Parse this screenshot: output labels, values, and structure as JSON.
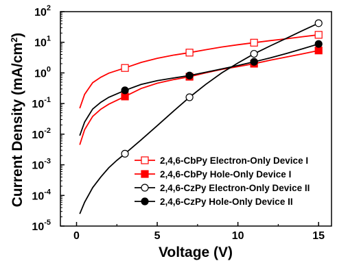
{
  "chart_data": {
    "type": "scatter",
    "xlabel": "Voltage (V)",
    "ylabel_main": "Current Density (mA/cm",
    "ylabel_sup": "2",
    "ylabel_end": ")",
    "xlim": [
      -1,
      15.8
    ],
    "ylim_log10": [
      -5,
      2
    ],
    "y_scale": "log",
    "x_ticks": [
      0,
      5,
      10,
      15
    ],
    "x_tick_labels": [
      "0",
      "5",
      "10",
      "15"
    ],
    "y_ticks_exp": [
      -5,
      -4,
      -3,
      -2,
      -1,
      0,
      1,
      2
    ],
    "y_tick_base": "10",
    "y_tick_exp_labels": [
      "-5",
      "-4",
      "-3",
      "-2",
      "-1",
      "0",
      "1",
      "2"
    ],
    "legend_position": "lower-right",
    "series": [
      {
        "name": "2,4,6-CbPy Electron-Only Device I",
        "color": "#ff0000",
        "marker": "square",
        "filled": false,
        "marker_x": [
          3,
          7,
          11,
          15
        ],
        "marker_y": [
          1.45,
          4.6,
          9.7,
          17.5
        ],
        "curve": [
          [
            0.2,
            0.07
          ],
          [
            0.5,
            0.2
          ],
          [
            1,
            0.48
          ],
          [
            1.5,
            0.72
          ],
          [
            2,
            0.98
          ],
          [
            3,
            1.45
          ],
          [
            4,
            2.2
          ],
          [
            5,
            3.0
          ],
          [
            6,
            3.8
          ],
          [
            7,
            4.6
          ],
          [
            8,
            5.7
          ],
          [
            9,
            7.0
          ],
          [
            10,
            8.3
          ],
          [
            11,
            9.7
          ],
          [
            12,
            11.3
          ],
          [
            13,
            13.0
          ],
          [
            14,
            15.2
          ],
          [
            15,
            17.5
          ]
        ]
      },
      {
        "name": "2,4,6-CbPy Hole-Only Device I",
        "color": "#ff0000",
        "marker": "square",
        "filled": true,
        "marker_x": [
          3,
          7,
          11,
          15
        ],
        "marker_y": [
          0.17,
          0.75,
          2.0,
          5.4
        ],
        "curve": [
          [
            0.2,
            0.0045
          ],
          [
            0.5,
            0.014
          ],
          [
            1,
            0.038
          ],
          [
            1.5,
            0.065
          ],
          [
            2,
            0.095
          ],
          [
            3,
            0.17
          ],
          [
            4,
            0.31
          ],
          [
            5,
            0.46
          ],
          [
            6,
            0.6
          ],
          [
            7,
            0.75
          ],
          [
            8,
            1.0
          ],
          [
            9,
            1.3
          ],
          [
            10,
            1.6
          ],
          [
            11,
            2.0
          ],
          [
            12,
            2.6
          ],
          [
            13,
            3.3
          ],
          [
            14,
            4.2
          ],
          [
            15,
            5.4
          ]
        ]
      },
      {
        "name": "2,4,6-CzPy Electron-Only Device II",
        "color": "#000000",
        "marker": "circle",
        "filled": false,
        "marker_x": [
          3,
          7,
          11,
          15
        ],
        "marker_y": [
          0.0023,
          0.16,
          4.2,
          42
        ],
        "curve": [
          [
            0.2,
            2.5e-05
          ],
          [
            0.5,
            6e-05
          ],
          [
            1,
            0.00018
          ],
          [
            1.5,
            0.0004
          ],
          [
            2,
            0.0008
          ],
          [
            2.5,
            0.0014
          ],
          [
            3,
            0.0023
          ],
          [
            4,
            0.0065
          ],
          [
            5,
            0.019
          ],
          [
            6,
            0.056
          ],
          [
            7,
            0.16
          ],
          [
            8,
            0.42
          ],
          [
            9,
            1.0
          ],
          [
            10,
            2.1
          ],
          [
            11,
            4.2
          ],
          [
            12,
            7.6
          ],
          [
            13,
            13.5
          ],
          [
            14,
            24
          ],
          [
            15,
            42
          ]
        ]
      },
      {
        "name": "2,4,6-CzPy Hole-Only Device II",
        "color": "#000000",
        "marker": "circle",
        "filled": true,
        "marker_x": [
          3,
          7,
          11,
          15
        ],
        "marker_y": [
          0.27,
          0.82,
          2.3,
          8.8
        ],
        "curve": [
          [
            0.2,
            0.009
          ],
          [
            0.5,
            0.025
          ],
          [
            1,
            0.066
          ],
          [
            1.5,
            0.11
          ],
          [
            2,
            0.16
          ],
          [
            3,
            0.27
          ],
          [
            4,
            0.42
          ],
          [
            5,
            0.56
          ],
          [
            6,
            0.68
          ],
          [
            7,
            0.82
          ],
          [
            8,
            1.05
          ],
          [
            9,
            1.35
          ],
          [
            10,
            1.75
          ],
          [
            11,
            2.3
          ],
          [
            12,
            3.1
          ],
          [
            13,
            4.3
          ],
          [
            14,
            6.1
          ],
          [
            15,
            8.8
          ]
        ]
      }
    ]
  }
}
